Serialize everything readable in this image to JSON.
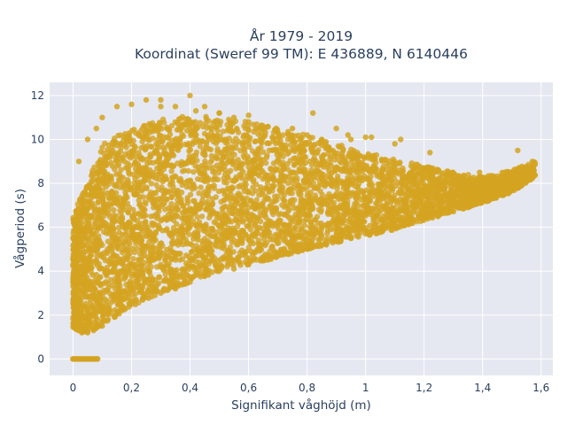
{
  "chart_data": {
    "type": "scatter",
    "title_line1": "År 1979 - 2019",
    "title_line2": "Koordinat (Sweref 99 TM): E 436889, N 6140446",
    "xlabel": "Signifikant våghöjd (m)",
    "ylabel": "Vågperiod (s)",
    "xlim": [
      -0.08,
      1.64
    ],
    "ylim": [
      -0.75,
      12.6
    ],
    "x_ticks": [
      0,
      0.2,
      0.4,
      0.6,
      0.8,
      1,
      1.2,
      1.4,
      1.6
    ],
    "x_tick_labels": [
      "0",
      "0,2",
      "0,4",
      "0,6",
      "0,8",
      "1",
      "1,2",
      "1,4",
      "1,6"
    ],
    "y_ticks": [
      0,
      2,
      4,
      6,
      8,
      10,
      12
    ],
    "y_tick_labels": [
      "0",
      "2",
      "4",
      "6",
      "8",
      "10",
      "12"
    ],
    "grid": true,
    "legend": "none",
    "marker_color": "#d4a321",
    "plot_bg": "#e5e8f0",
    "series": [
      {
        "x": [
          0.0,
          0.02,
          0.04,
          0.06,
          0.08,
          0.01,
          0.02,
          0.03,
          0.05,
          0.07,
          0.1,
          0.12,
          0.15,
          0.18,
          0.2,
          0.25,
          0.3,
          0.35,
          0.4,
          0.45,
          0.5,
          0.55,
          0.6,
          0.65,
          0.7,
          0.75,
          0.8,
          0.85,
          0.9,
          0.95,
          1.0,
          1.05,
          1.1,
          1.15,
          1.2,
          1.25,
          1.3,
          1.35,
          1.4,
          1.45,
          1.5,
          1.55,
          1.57,
          0.02,
          0.05,
          0.08,
          0.1,
          0.15,
          0.2,
          0.25,
          0.3,
          0.35,
          0.4,
          0.45,
          0.5,
          0.55,
          0.6,
          0.65,
          0.7,
          0.75,
          0.8,
          0.85,
          0.9,
          0.95,
          1.0,
          1.1,
          1.2,
          0.3,
          0.42,
          0.5,
          0.6,
          0.82,
          0.94,
          1.02,
          1.12,
          1.22,
          1.39,
          1.52,
          0.08,
          0.17,
          0.29
        ],
        "y": [
          0.0,
          0.0,
          0.0,
          0.0,
          0.0,
          1.7,
          1.3,
          1.2,
          1.2,
          1.3,
          1.5,
          1.8,
          2.1,
          2.3,
          2.5,
          2.8,
          3.0,
          3.2,
          3.5,
          3.8,
          4.0,
          4.1,
          4.3,
          4.5,
          4.7,
          4.9,
          5.0,
          5.2,
          5.4,
          5.5,
          5.7,
          5.9,
          6.1,
          6.3,
          6.5,
          6.7,
          7.0,
          7.3,
          7.6,
          8.0,
          8.3,
          8.6,
          9.0,
          9.0,
          10.0,
          10.5,
          11.0,
          11.5,
          11.6,
          11.8,
          11.5,
          11.5,
          12.0,
          11.5,
          11.2,
          11.0,
          10.8,
          10.5,
          10.3,
          10.5,
          10.2,
          10.0,
          10.5,
          10.0,
          10.1,
          9.8,
          8.7,
          11.8,
          11.3,
          11.2,
          11.1,
          11.2,
          10.2,
          10.1,
          10.0,
          9.4,
          8.5,
          9.5,
          5.5,
          6.0,
          6.5
        ],
        "upper_envelope": {
          "x": [
            0.0,
            0.1,
            0.2,
            0.3,
            0.4,
            0.5,
            0.6,
            0.7,
            0.8,
            0.9,
            1.0,
            1.1,
            1.2,
            1.3,
            1.4,
            1.5,
            1.58
          ],
          "y": [
            6.5,
            9.8,
            10.5,
            10.9,
            11.1,
            11.0,
            10.8,
            10.5,
            10.2,
            9.8,
            9.4,
            9.1,
            8.8,
            8.5,
            8.3,
            8.6,
            9.0
          ]
        },
        "lower_envelope": {
          "x": [
            0.0,
            0.04,
            0.1,
            0.2,
            0.3,
            0.4,
            0.5,
            0.6,
            0.7,
            0.8,
            0.9,
            1.0,
            1.1,
            1.2,
            1.3,
            1.4,
            1.5,
            1.58
          ],
          "y": [
            1.4,
            1.2,
            1.5,
            2.4,
            3.0,
            3.5,
            4.0,
            4.3,
            4.6,
            5.0,
            5.3,
            5.6,
            5.9,
            6.3,
            6.7,
            7.1,
            7.6,
            8.3
          ]
        }
      }
    ]
  }
}
